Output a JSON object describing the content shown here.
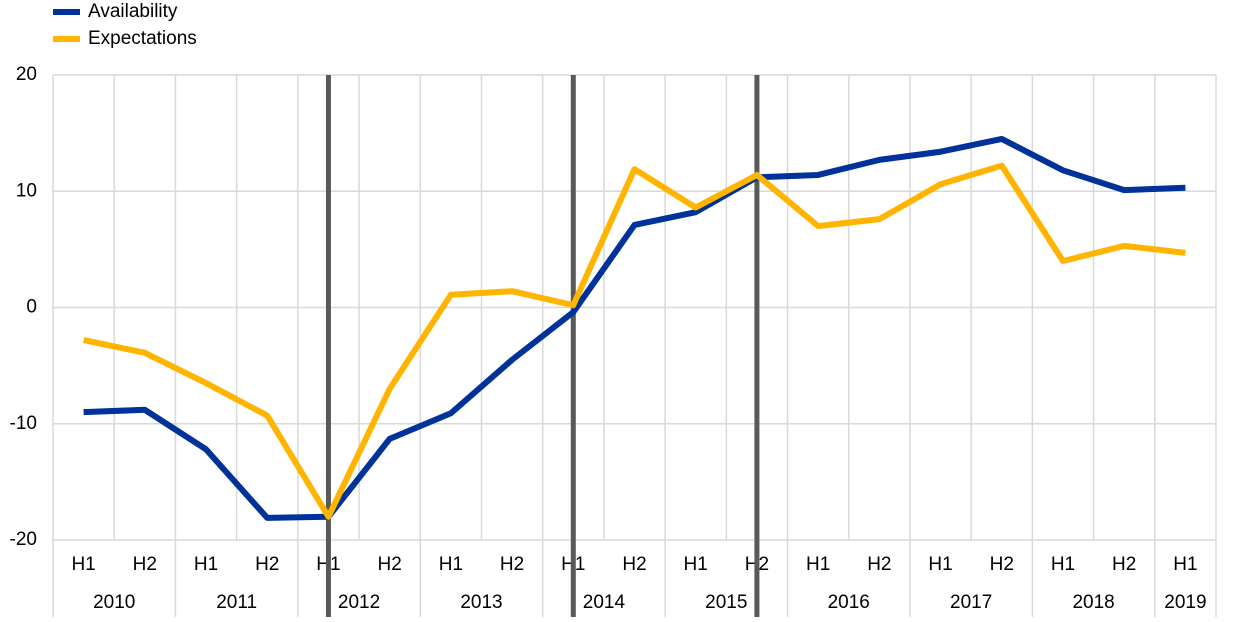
{
  "chart_data": {
    "type": "line",
    "categories": [
      "H1",
      "H2",
      "H1",
      "H2",
      "H1",
      "H2",
      "H1",
      "H2",
      "H1",
      "H2",
      "H1",
      "H2",
      "H1",
      "H2",
      "H1",
      "H2",
      "H1",
      "H2",
      "H1"
    ],
    "groups": [
      {
        "name": "2010",
        "count": 2
      },
      {
        "name": "2011",
        "count": 2
      },
      {
        "name": "2012",
        "count": 2
      },
      {
        "name": "2013",
        "count": 2
      },
      {
        "name": "2014",
        "count": 2
      },
      {
        "name": "2015",
        "count": 2
      },
      {
        "name": "2016",
        "count": 2
      },
      {
        "name": "2017",
        "count": 2
      },
      {
        "name": "2018",
        "count": 2
      },
      {
        "name": "2019",
        "count": 1
      }
    ],
    "series": [
      {
        "name": "Availability",
        "color": "#003299",
        "values": [
          -9.0,
          -8.8,
          -12.2,
          -18.1,
          -18.0,
          -11.3,
          -9.1,
          -4.5,
          -0.4,
          7.1,
          8.2,
          11.2,
          11.4,
          12.7,
          13.4,
          14.5,
          11.8,
          10.1,
          10.3
        ]
      },
      {
        "name": "Expectations",
        "color": "#ffb400",
        "values": [
          -2.8,
          -3.9,
          -6.5,
          -9.3,
          -18.0,
          -7.0,
          1.1,
          1.4,
          0.2,
          11.9,
          8.6,
          11.4,
          7.0,
          7.6,
          10.6,
          12.2,
          4.0,
          5.3,
          4.7
        ]
      }
    ],
    "marker_lines": [
      4,
      8,
      11
    ],
    "marker_color": "#595959",
    "ylim": [
      -20,
      20
    ],
    "yticks": [
      -20,
      -10,
      0,
      10,
      20
    ],
    "grid": true,
    "legend": "top-left"
  }
}
